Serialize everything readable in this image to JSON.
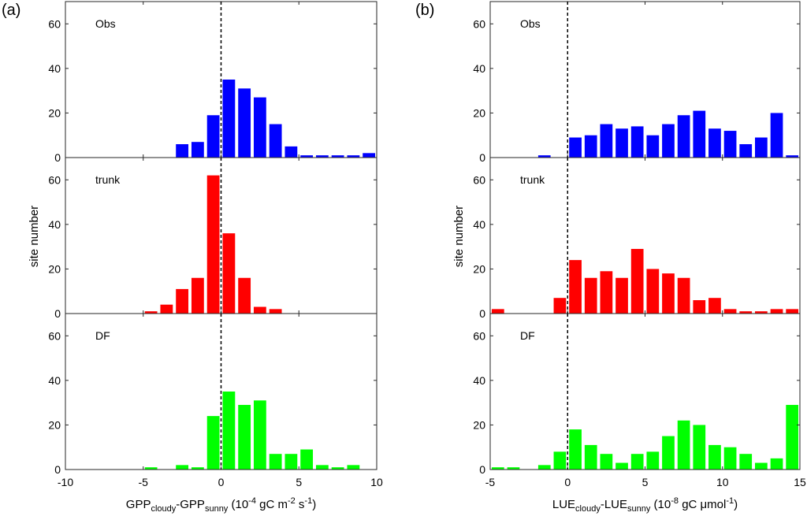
{
  "panel_labels": [
    "(a)",
    "(b)"
  ],
  "chart_data": [
    {
      "type": "bar",
      "panel": "(a)",
      "xlabel": {
        "main": "GPP",
        "sub1": "cloudy",
        "mid": "-GPP",
        "sub2": "sunny",
        "unit_pre": " (10",
        "exp1": "-4",
        "unit_mid": " gC m",
        "exp2": "-2",
        "unit_mid2": " s",
        "exp3": "-1",
        "unit_end": ")"
      },
      "ylabel": "site number",
      "xlim": [
        -10,
        10
      ],
      "xticks": [
        -10,
        -5,
        0,
        5,
        10
      ],
      "ylim": [
        0,
        70
      ],
      "yticks": [
        0,
        20,
        40,
        60
      ],
      "bin_width": 1,
      "x": [
        -4.5,
        -3.5,
        -2.5,
        -1.5,
        -0.5,
        0.5,
        1.5,
        2.5,
        3.5,
        4.5,
        5.5,
        6.5,
        7.5,
        8.5,
        9.5
      ],
      "series": [
        {
          "name": "Obs",
          "color": "#0000ff",
          "values": [
            0,
            0,
            6,
            7,
            19,
            35,
            31,
            27,
            15,
            5,
            1,
            1,
            1,
            1,
            2
          ]
        },
        {
          "name": "trunk",
          "color": "#ff0000",
          "values": [
            1,
            4,
            11,
            16,
            62,
            36,
            16,
            3,
            2,
            0,
            0,
            0,
            0,
            0,
            0
          ]
        },
        {
          "name": "DF",
          "color": "#00ff00",
          "values": [
            1,
            0,
            2,
            1,
            24,
            35,
            29,
            31,
            7,
            7,
            9,
            2,
            1,
            2,
            0
          ]
        }
      ],
      "vline_x": 0
    },
    {
      "type": "bar",
      "panel": "(b)",
      "xlabel": {
        "main": "LUE",
        "sub1": "cloudy",
        "mid": "-LUE",
        "sub2": "sunny",
        "unit_pre": " (10",
        "exp1": "-8",
        "unit_mid": " gC μmol",
        "exp2": "-1",
        "unit_mid2": "",
        "exp3": "",
        "unit_end": ")"
      },
      "ylabel": "site number",
      "xlim": [
        -5,
        15
      ],
      "xticks": [
        -5,
        0,
        5,
        10,
        15
      ],
      "ylim": [
        0,
        70
      ],
      "yticks": [
        0,
        20,
        40,
        60
      ],
      "bin_width": 1,
      "x": [
        -4.5,
        -3.5,
        -2.5,
        -1.5,
        -0.5,
        0.5,
        1.5,
        2.5,
        3.5,
        4.5,
        5.5,
        6.5,
        7.5,
        8.5,
        9.5,
        10.5,
        11.5,
        12.5,
        13.5,
        14.5
      ],
      "series": [
        {
          "name": "Obs",
          "color": "#0000ff",
          "values": [
            0,
            0,
            0,
            1,
            0,
            9,
            10,
            15,
            13,
            14,
            10,
            15,
            19,
            21,
            13,
            12,
            6,
            9,
            20,
            1
          ]
        },
        {
          "name": "trunk",
          "color": "#ff0000",
          "values": [
            2,
            0,
            0,
            0,
            7,
            24,
            16,
            19,
            16,
            29,
            20,
            18,
            16,
            6,
            7,
            2,
            1,
            1,
            2,
            2
          ]
        },
        {
          "name": "DF",
          "color": "#00ff00",
          "values": [
            1,
            1,
            0,
            2,
            8,
            18,
            11,
            7,
            3,
            7,
            8,
            15,
            22,
            20,
            11,
            10,
            7,
            3,
            5,
            29
          ]
        }
      ],
      "vline_x": 0
    }
  ]
}
